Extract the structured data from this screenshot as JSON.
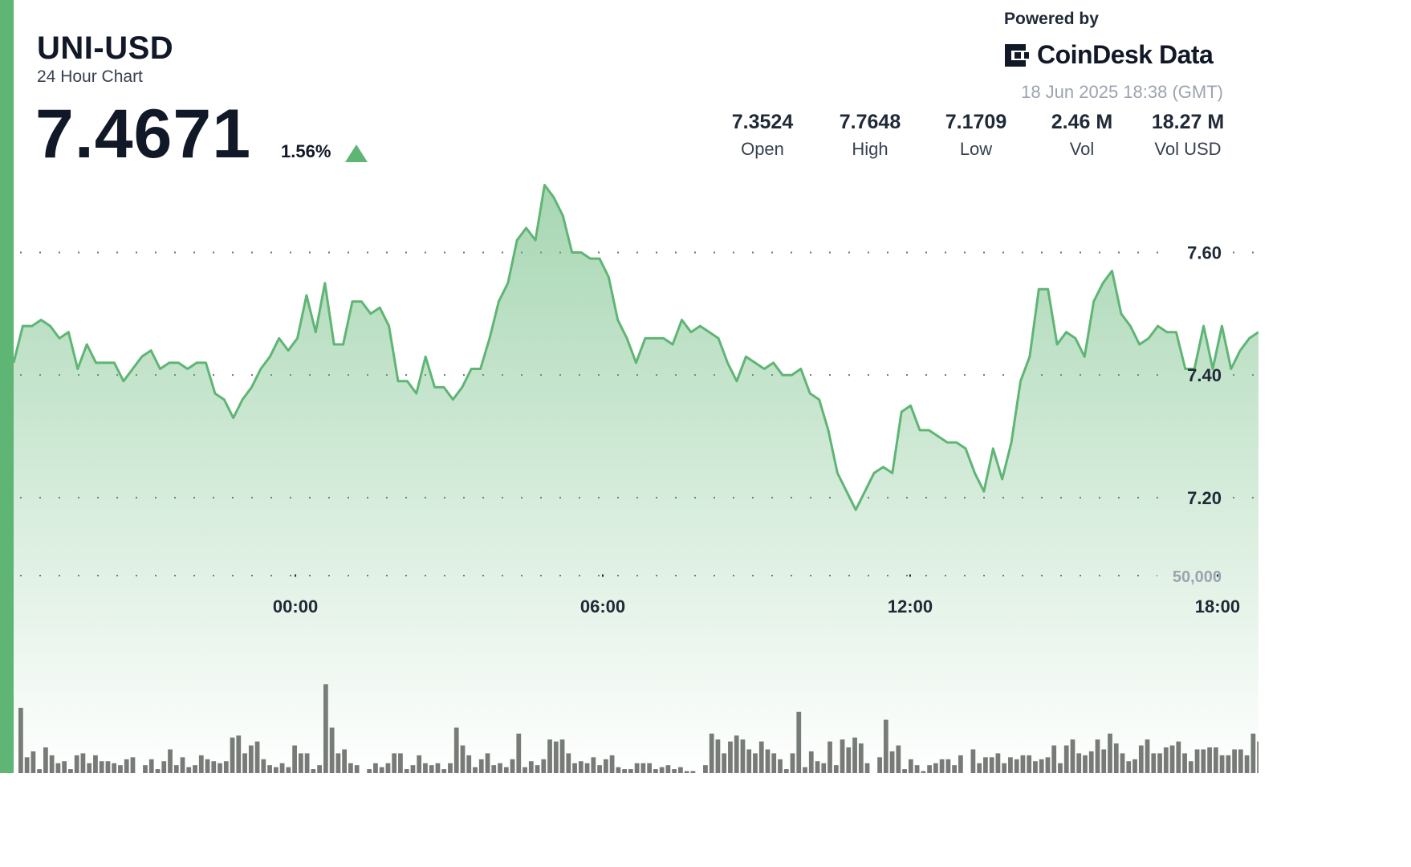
{
  "header": {
    "symbol": "UNI-USD",
    "subtitle": "24 Hour Chart",
    "price": "7.4671",
    "change": "1.56%",
    "direction": "up"
  },
  "branding": {
    "powered_by": "Powered by",
    "brand_name": "CoinDesk Data",
    "timestamp": "18 Jun 2025 18:38 (GMT)"
  },
  "stats": [
    {
      "value": "7.3524",
      "label": "Open"
    },
    {
      "value": "7.7648",
      "label": "High"
    },
    {
      "value": "7.1709",
      "label": "Low"
    },
    {
      "value": "2.46 M",
      "label": "Vol"
    },
    {
      "value": "18.27 M",
      "label": "Vol USD"
    }
  ],
  "colors": {
    "accent": "#5fb574",
    "line": "#5fb574",
    "volume_bar": "#6b6f6b",
    "text": "#111827",
    "muted": "#9ca3af"
  },
  "chart_data": {
    "type": "area",
    "x_tick_labels": [
      "00:00",
      "06:00",
      "12:00",
      "18:00"
    ],
    "x_tick_hours": [
      5.5,
      11.5,
      17.5,
      23.5
    ],
    "x_range_hours": [
      0,
      24.3
    ],
    "y_ticks": [
      7.2,
      7.4,
      7.6
    ],
    "y_tick_labels": [
      "7.20",
      "7.40",
      "7.60"
    ],
    "ylim": [
      7.095,
      7.75
    ],
    "volume_tick_value": 50000,
    "volume_tick_label": "50,000",
    "volume_max": 50000,
    "grid": "horizontal-dotted",
    "price_series": [
      7.42,
      7.48,
      7.48,
      7.49,
      7.48,
      7.46,
      7.47,
      7.41,
      7.45,
      7.42,
      7.42,
      7.42,
      7.39,
      7.41,
      7.43,
      7.44,
      7.41,
      7.42,
      7.42,
      7.41,
      7.42,
      7.42,
      7.37,
      7.36,
      7.33,
      7.36,
      7.38,
      7.41,
      7.43,
      7.46,
      7.44,
      7.46,
      7.53,
      7.47,
      7.55,
      7.45,
      7.45,
      7.52,
      7.52,
      7.5,
      7.51,
      7.48,
      7.39,
      7.39,
      7.37,
      7.43,
      7.38,
      7.38,
      7.36,
      7.38,
      7.41,
      7.41,
      7.46,
      7.52,
      7.55,
      7.62,
      7.64,
      7.62,
      7.71,
      7.69,
      7.66,
      7.6,
      7.6,
      7.59,
      7.59,
      7.56,
      7.49,
      7.46,
      7.42,
      7.46,
      7.46,
      7.46,
      7.45,
      7.49,
      7.47,
      7.48,
      7.47,
      7.46,
      7.42,
      7.39,
      7.43,
      7.42,
      7.41,
      7.42,
      7.4,
      7.4,
      7.41,
      7.37,
      7.36,
      7.31,
      7.24,
      7.21,
      7.18,
      7.21,
      7.24,
      7.25,
      7.24,
      7.34,
      7.35,
      7.31,
      7.31,
      7.3,
      7.29,
      7.29,
      7.28,
      7.24,
      7.21,
      7.28,
      7.23,
      7.29,
      7.39,
      7.43,
      7.54,
      7.54,
      7.45,
      7.47,
      7.46,
      7.43,
      7.52,
      7.55,
      7.57,
      7.5,
      7.48,
      7.45,
      7.46,
      7.48,
      7.47,
      7.47,
      7.41,
      7.41,
      7.48,
      7.41,
      7.48,
      7.41,
      7.44,
      7.46,
      7.47
    ],
    "volume_series": [
      0.33,
      0.08,
      0.11,
      0.02,
      0.13,
      0.09,
      0.05,
      0.06,
      0.02,
      0.09,
      0.1,
      0.05,
      0.09,
      0.06,
      0.06,
      0.05,
      0.04,
      0.07,
      0.08,
      0.0,
      0.04,
      0.07,
      0.02,
      0.06,
      0.12,
      0.04,
      0.08,
      0.03,
      0.04,
      0.09,
      0.07,
      0.06,
      0.05,
      0.06,
      0.18,
      0.19,
      0.1,
      0.14,
      0.16,
      0.07,
      0.04,
      0.03,
      0.05,
      0.03,
      0.14,
      0.1,
      0.1,
      0.02,
      0.04,
      0.45,
      0.23,
      0.1,
      0.12,
      0.05,
      0.04,
      0.0,
      0.02,
      0.05,
      0.03,
      0.05,
      0.1,
      0.1,
      0.02,
      0.04,
      0.09,
      0.05,
      0.04,
      0.05,
      0.02,
      0.05,
      0.23,
      0.14,
      0.09,
      0.03,
      0.07,
      0.1,
      0.04,
      0.05,
      0.03,
      0.07,
      0.2,
      0.03,
      0.06,
      0.04,
      0.07,
      0.17,
      0.16,
      0.17,
      0.1,
      0.05,
      0.06,
      0.05,
      0.08,
      0.04,
      0.07,
      0.09,
      0.03,
      0.02,
      0.02,
      0.05,
      0.05,
      0.05,
      0.02,
      0.03,
      0.04,
      0.02,
      0.03,
      0.01,
      0.01,
      0.0,
      0.04,
      0.2,
      0.17,
      0.1,
      0.16,
      0.19,
      0.17,
      0.12,
      0.1,
      0.16,
      0.12,
      0.1,
      0.07,
      0.02,
      0.1,
      0.31,
      0.03,
      0.11,
      0.06,
      0.05,
      0.16,
      0.04,
      0.17,
      0.13,
      0.18,
      0.15,
      0.05,
      0.0,
      0.08,
      0.27,
      0.11,
      0.14,
      0.02,
      0.07,
      0.04,
      0.01,
      0.04,
      0.05,
      0.07,
      0.07,
      0.04,
      0.09,
      0.0,
      0.12,
      0.05,
      0.08,
      0.08,
      0.1,
      0.05,
      0.08,
      0.07,
      0.09,
      0.09,
      0.06,
      0.07,
      0.08,
      0.14,
      0.05,
      0.14,
      0.17,
      0.1,
      0.09,
      0.11,
      0.17,
      0.12,
      0.2,
      0.15,
      0.1,
      0.06,
      0.07,
      0.14,
      0.17,
      0.1,
      0.1,
      0.13,
      0.14,
      0.16,
      0.1,
      0.06,
      0.12,
      0.12,
      0.13,
      0.13,
      0.09,
      0.09,
      0.12,
      0.12,
      0.09,
      0.2,
      0.16
    ]
  }
}
